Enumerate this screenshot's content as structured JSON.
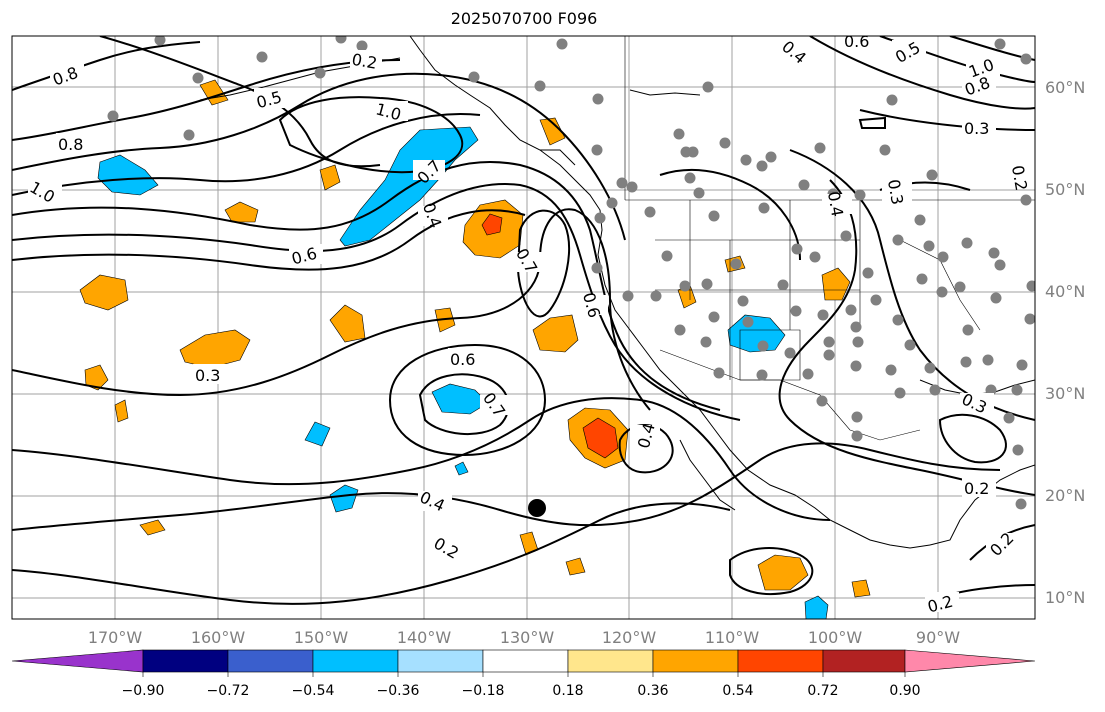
{
  "title": "2025070700 F096",
  "map": {
    "lat_labels": [
      "60°N",
      "50°N",
      "40°N",
      "30°N",
      "20°N",
      "10°N"
    ],
    "lon_labels": [
      "170°W",
      "160°W",
      "150°W",
      "140°W",
      "130°W",
      "120°W",
      "110°W",
      "100°W",
      "90°W"
    ],
    "contour_labels": [
      "0.8",
      "0.2",
      "0.5",
      "1.0",
      "0.8",
      "1.0",
      "0.7",
      "0.4",
      "0.6",
      "0.3",
      "0.7",
      "0.6",
      "0.7",
      "0.6",
      "0.4",
      "0.2",
      "0.4",
      "0.3",
      "0.4",
      "0.3",
      "0.2",
      "0.2",
      "0.2",
      "0.8",
      "1.0",
      "0.6",
      "0.5",
      "0.3",
      "0.2",
      "0.4"
    ]
  },
  "colorbar": {
    "tick_labels": [
      "−0.90",
      "−0.72",
      "−0.54",
      "−0.36",
      "−0.18",
      "0.18",
      "0.36",
      "0.54",
      "0.72",
      "0.90"
    ],
    "colors": [
      "#9933cc",
      "#000080",
      "#3a5fcd",
      "#00bfff",
      "#a6e0ff",
      "#ffffff",
      "#ffe68c",
      "#ffa500",
      "#ff4500",
      "#b22222",
      "#ff88aa"
    ]
  }
}
